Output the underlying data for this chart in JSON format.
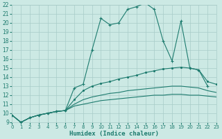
{
  "xlabel": "Humidex (Indice chaleur)",
  "bg_color": "#cce9e4",
  "line_color": "#1d7b6e",
  "grid_color": "#a8ccc8",
  "xlim": [
    0,
    23
  ],
  "ylim": [
    9,
    22
  ],
  "yticks": [
    9,
    10,
    11,
    12,
    13,
    14,
    15,
    16,
    17,
    18,
    19,
    20,
    21,
    22
  ],
  "xticks": [
    0,
    1,
    2,
    3,
    4,
    5,
    6,
    7,
    8,
    9,
    10,
    11,
    12,
    13,
    14,
    15,
    16,
    17,
    18,
    19,
    20,
    21,
    22,
    23
  ],
  "line1_x": [
    0,
    1,
    2,
    3,
    4,
    5,
    6,
    7,
    8,
    9,
    10,
    11,
    12,
    13,
    14,
    15,
    16,
    17,
    18,
    19,
    20,
    21,
    22
  ],
  "line1_y": [
    9.8,
    9.0,
    9.5,
    9.8,
    10.0,
    10.2,
    10.3,
    12.8,
    13.2,
    17.0,
    20.5,
    19.8,
    20.0,
    21.5,
    21.8,
    22.2,
    21.5,
    18.0,
    15.8,
    20.2,
    15.0,
    14.8,
    13.0
  ],
  "line2_x": [
    0,
    1,
    2,
    3,
    4,
    5,
    6,
    7,
    8,
    9,
    10,
    11,
    12,
    13,
    14,
    15,
    16,
    17,
    18,
    19,
    20,
    21,
    22,
    23
  ],
  "line2_y": [
    9.8,
    9.0,
    9.5,
    9.8,
    10.0,
    10.2,
    10.3,
    11.5,
    12.5,
    13.0,
    13.3,
    13.5,
    13.8,
    14.0,
    14.2,
    14.5,
    14.7,
    14.9,
    15.0,
    15.1,
    15.0,
    14.8,
    13.5,
    13.2
  ],
  "line3_x": [
    0,
    1,
    2,
    3,
    4,
    5,
    6,
    7,
    8,
    9,
    10,
    11,
    12,
    13,
    14,
    15,
    16,
    17,
    18,
    19,
    20,
    21,
    22,
    23
  ],
  "line3_y": [
    9.8,
    9.0,
    9.5,
    9.8,
    10.0,
    10.2,
    10.3,
    11.0,
    11.5,
    11.8,
    12.0,
    12.2,
    12.3,
    12.5,
    12.6,
    12.7,
    12.8,
    12.9,
    13.0,
    13.0,
    12.9,
    12.8,
    12.5,
    12.3
  ],
  "line4_x": [
    0,
    1,
    2,
    3,
    4,
    5,
    6,
    7,
    8,
    9,
    10,
    11,
    12,
    13,
    14,
    15,
    16,
    17,
    18,
    19,
    20,
    21,
    22,
    23
  ],
  "line4_y": [
    9.8,
    9.0,
    9.5,
    9.8,
    10.0,
    10.2,
    10.3,
    10.8,
    11.0,
    11.2,
    11.4,
    11.5,
    11.6,
    11.7,
    11.8,
    11.9,
    12.0,
    12.0,
    12.1,
    12.1,
    12.0,
    12.0,
    11.9,
    11.8
  ]
}
